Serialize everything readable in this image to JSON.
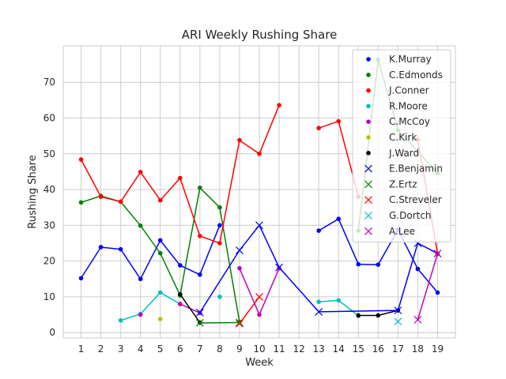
{
  "chart_data": {
    "type": "line",
    "title": "ARI Weekly Rushing Share",
    "xlabel": "Week",
    "ylabel": "Rushing Share",
    "x_ticks": [
      1,
      2,
      3,
      4,
      5,
      6,
      7,
      8,
      9,
      10,
      11,
      12,
      13,
      14,
      15,
      16,
      17,
      18,
      19
    ],
    "y_ticks": [
      0,
      10,
      20,
      30,
      40,
      50,
      60,
      70
    ],
    "xlim": [
      0.1,
      19.9
    ],
    "ylim": [
      -1.5,
      80.2
    ],
    "grid": true,
    "legend_position": "upper-right",
    "series": [
      {
        "name": "K.Murray",
        "color": "#0000ff",
        "marker": "dot",
        "x": [
          1,
          2,
          3,
          4,
          5,
          6,
          7,
          8,
          null,
          13,
          14,
          15,
          16,
          17,
          18,
          19
        ],
        "y": [
          15.2,
          23.9,
          23.3,
          15,
          25.8,
          18.8,
          16.2,
          30,
          null,
          28.5,
          31.8,
          19.1,
          19,
          28.8,
          17.8,
          11.2
        ]
      },
      {
        "name": "C.Edmonds",
        "color": "#008000",
        "marker": "dot",
        "x": [
          1,
          2,
          3,
          4,
          5,
          6,
          7,
          8,
          9,
          null,
          15,
          16,
          17,
          19
        ],
        "y": [
          36.4,
          38.2,
          36.6,
          29.9,
          22.2,
          10.4,
          40.5,
          35,
          3,
          null,
          28.5,
          76.3,
          56.6,
          44.6
        ]
      },
      {
        "name": "J.Conner",
        "color": "#ff0000",
        "marker": "dot",
        "x": [
          1,
          2,
          3,
          4,
          5,
          6,
          7,
          8,
          9,
          10,
          11,
          null,
          13,
          14,
          15,
          null,
          18,
          19
        ],
        "y": [
          48.4,
          38,
          36.6,
          44.9,
          37,
          43.2,
          27,
          25,
          53.8,
          50,
          63.6,
          null,
          57.2,
          59.1,
          38,
          null,
          54,
          22
        ]
      },
      {
        "name": "R.Moore",
        "color": "#00bfbf",
        "marker": "dot",
        "x": [
          3,
          4,
          5,
          6,
          7,
          null,
          8,
          null,
          13,
          14,
          15
        ],
        "y": [
          3.4,
          5.2,
          11.2,
          8,
          5.5,
          null,
          10,
          null,
          8.6,
          9,
          4.7
        ]
      },
      {
        "name": "C.McCoy",
        "color": "#bf00bf",
        "marker": "dot",
        "x": [
          4,
          null,
          6,
          7,
          null,
          9,
          10,
          11
        ],
        "y": [
          5,
          null,
          8,
          5.5,
          null,
          18,
          5,
          18
        ]
      },
      {
        "name": "C.Kirk",
        "color": "#bfbf00",
        "marker": "dot",
        "x": [
          5
        ],
        "y": [
          3.8
        ]
      },
      {
        "name": "J.Ward",
        "color": "#000000",
        "marker": "dot",
        "x": [
          6,
          7,
          null,
          15,
          16,
          17
        ],
        "y": [
          10.7,
          2.8,
          null,
          4.8,
          4.8,
          6.2
        ]
      },
      {
        "name": "E.Benjamin",
        "color": "#0000ff",
        "marker": "x",
        "x": [
          7,
          9,
          10,
          11,
          13,
          17,
          18,
          19
        ],
        "y": [
          5.6,
          23,
          30,
          18.2,
          5.8,
          6.2,
          25,
          22.1
        ]
      },
      {
        "name": "Z.Ertz",
        "color": "#008000",
        "marker": "x",
        "x": [
          7,
          9
        ],
        "y": [
          2.7,
          2.8
        ]
      },
      {
        "name": "C.Streveler",
        "color": "#ff0000",
        "marker": "x",
        "x": [
          9,
          10
        ],
        "y": [
          2.5,
          10
        ]
      },
      {
        "name": "G.Dortch",
        "color": "#00bfbf",
        "marker": "x",
        "x": [
          17
        ],
        "y": [
          3.1
        ]
      },
      {
        "name": "A.Lee",
        "color": "#bf00bf",
        "marker": "x",
        "x": [
          18,
          19
        ],
        "y": [
          3.6,
          22.1
        ]
      }
    ]
  }
}
